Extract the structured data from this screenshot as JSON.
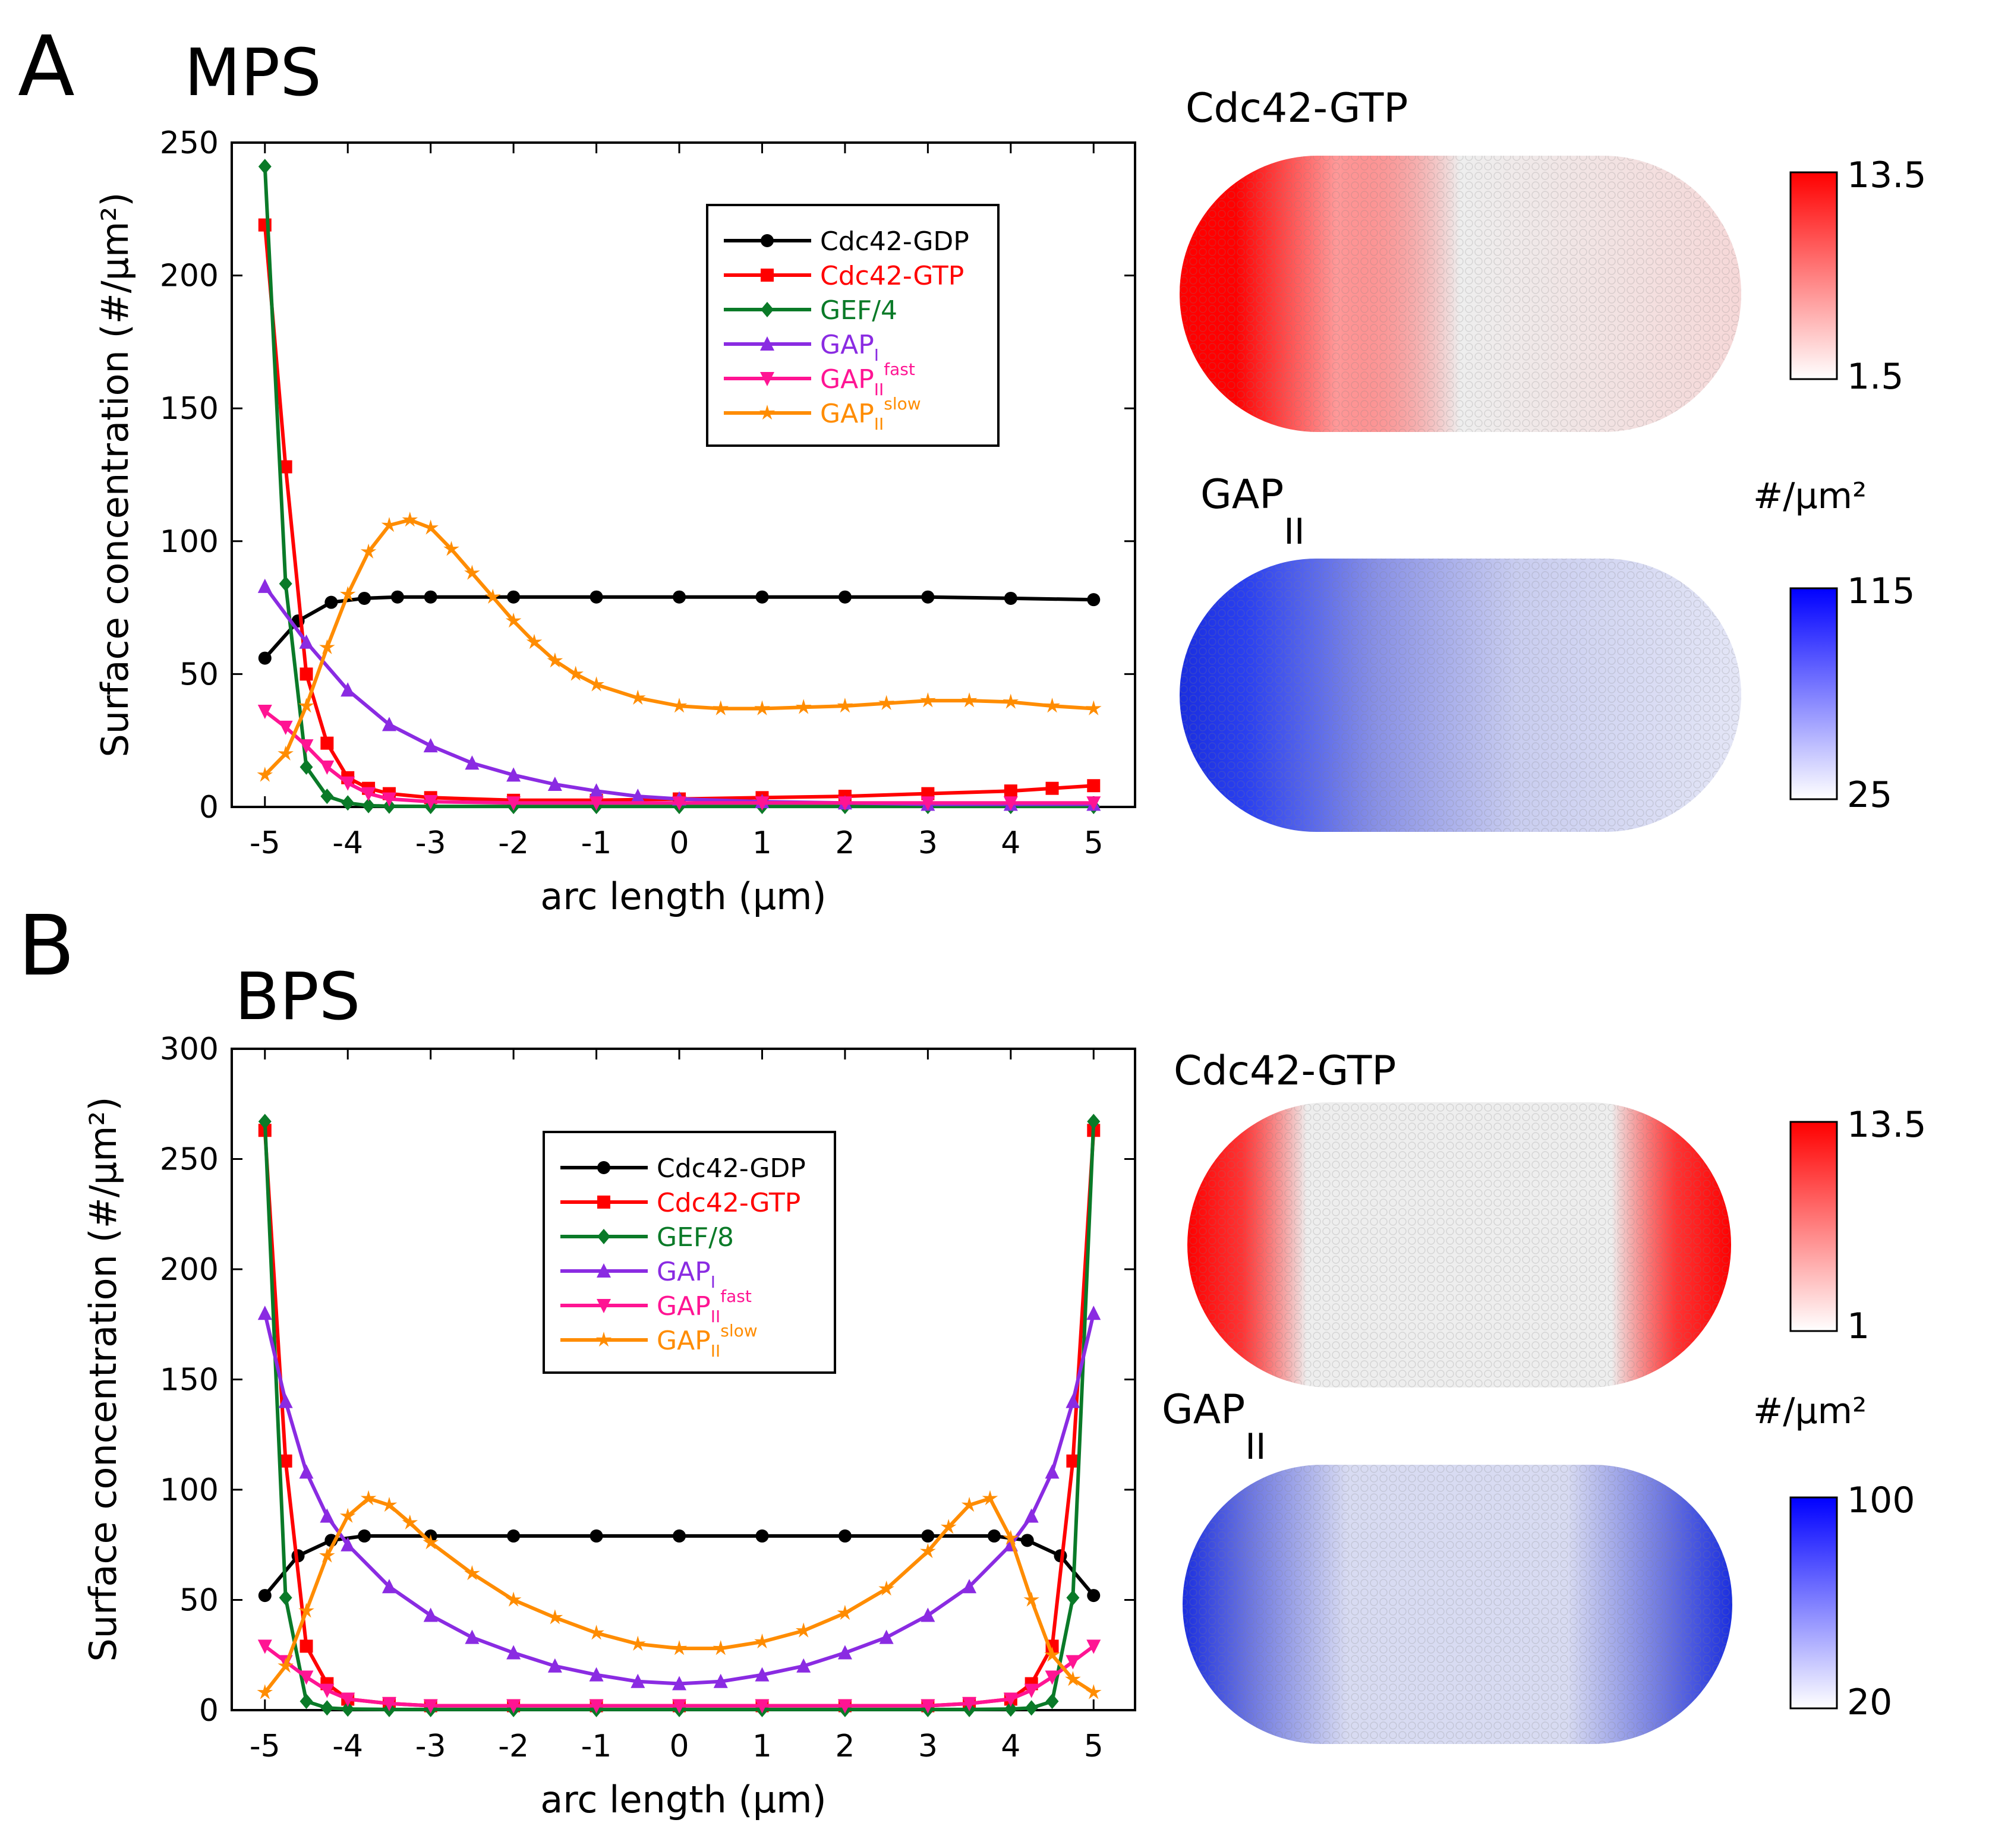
{
  "panels": [
    {
      "letter": "A",
      "title": "MPS",
      "chart_data": {
        "type": "line",
        "xlabel": "arc length (μm)",
        "ylabel": "Surface concentration (#/μm²)",
        "xlim": [
          -5.4,
          5.5
        ],
        "ylim": [
          0,
          250
        ],
        "xticks": [
          -5,
          -4,
          -3,
          -2,
          -1,
          0,
          1,
          2,
          3,
          4,
          5
        ],
        "yticks": [
          0,
          50,
          100,
          150,
          200,
          250
        ],
        "legend_position": "upper-middle",
        "series": [
          {
            "name": "Cdc42-GDP",
            "label_base": "Cdc42-GDP",
            "label_sub": "",
            "label_sup": "",
            "color": "#000000",
            "marker": "circle",
            "x": [
              -5,
              -4.6,
              -4.2,
              -3.8,
              -3.4,
              -3,
              -2,
              -1,
              0,
              1,
              2,
              3,
              4,
              5
            ],
            "y": [
              56,
              70,
              77,
              78.5,
              79,
              79,
              79,
              79,
              79,
              79,
              79,
              79,
              78.5,
              78
            ]
          },
          {
            "name": "Cdc42-GTP",
            "label_base": "Cdc42-GTP",
            "label_sub": "",
            "label_sup": "",
            "color": "#ff0000",
            "marker": "square",
            "x": [
              -5,
              -4.75,
              -4.5,
              -4.25,
              -4,
              -3.75,
              -3.5,
              -3,
              -2,
              -1,
              0,
              1,
              2,
              3,
              4,
              4.5,
              5
            ],
            "y": [
              219,
              128,
              50,
              24,
              11,
              7,
              5,
              3.5,
              2.5,
              2.5,
              3,
              3.5,
              4,
              5,
              6,
              7,
              8
            ]
          },
          {
            "name": "GEF/4",
            "label_base": "GEF/4",
            "label_sub": "",
            "label_sup": "",
            "color": "#0a7a28",
            "marker": "diamond",
            "x": [
              -5,
              -4.75,
              -4.5,
              -4.25,
              -4,
              -3.75,
              -3.5,
              -3,
              -2,
              -1,
              0,
              1,
              2,
              3,
              4,
              5
            ],
            "y": [
              241,
              84,
              15,
              4,
              1.5,
              0.5,
              0.3,
              0.2,
              0.2,
              0.2,
              0.2,
              0.2,
              0.2,
              0.2,
              0.2,
              0.2
            ]
          },
          {
            "name": "GAP_I",
            "label_base": "GAP",
            "label_sub": "I",
            "label_sup": "",
            "color": "#8a2be2",
            "marker": "triangle-up",
            "x": [
              -5,
              -4.5,
              -4,
              -3.5,
              -3,
              -2.5,
              -2,
              -1.5,
              -1,
              -0.5,
              0,
              1,
              2,
              3,
              4,
              5
            ],
            "y": [
              83,
              62,
              44,
              31,
              23,
              16.5,
              12,
              8.5,
              6,
              4,
              3,
              2,
              1.5,
              1,
              1,
              1
            ]
          },
          {
            "name": "GAP_II^fast",
            "label_base": "GAP",
            "label_sub": "II",
            "label_sup": "fast",
            "color": "#ff1493",
            "marker": "triangle-down",
            "x": [
              -5,
              -4.75,
              -4.5,
              -4.25,
              -4,
              -3.75,
              -3.5,
              -3,
              -2,
              -1,
              0,
              1,
              2,
              3,
              4,
              5
            ],
            "y": [
              36,
              30,
              23,
              15,
              9,
              5,
              3,
              2,
              1.5,
              1.5,
              1.5,
              1.5,
              1.5,
              1.5,
              1.5,
              1.5
            ]
          },
          {
            "name": "GAP_II^slow",
            "label_base": "GAP",
            "label_sub": "II",
            "label_sup": "slow",
            "color": "#ff8c00",
            "marker": "star",
            "x": [
              -5,
              -4.75,
              -4.5,
              -4.25,
              -4,
              -3.75,
              -3.5,
              -3.25,
              -3,
              -2.75,
              -2.5,
              -2.25,
              -2,
              -1.75,
              -1.5,
              -1.25,
              -1,
              -0.5,
              0,
              0.5,
              1,
              1.5,
              2,
              2.5,
              3,
              3.5,
              4,
              4.5,
              5
            ],
            "y": [
              12,
              20,
              38,
              60,
              80,
              96,
              106,
              108,
              105,
              97,
              88,
              79,
              70,
              62,
              55,
              50,
              46,
              41,
              38,
              37,
              37,
              37.5,
              38,
              39,
              40,
              40,
              39.5,
              38,
              37
            ]
          }
        ]
      },
      "maps": [
        {
          "title": "Cdc42-GTP",
          "title_sub": "",
          "unit": "",
          "max": "13.5",
          "min": "1.5",
          "high_color": "#ff0000",
          "low_color": "#ffffff",
          "hot_side": "left"
        },
        {
          "title": "GAP",
          "title_sub": "II",
          "unit": "#/μm²",
          "max": "115",
          "min": "25",
          "high_color": "#0000ff",
          "low_color": "#ffffff",
          "hot_side": "left"
        }
      ]
    },
    {
      "letter": "B",
      "title": "BPS",
      "chart_data": {
        "type": "line",
        "xlabel": "arc length (μm)",
        "ylabel": "Surface concentration (#/μm²)",
        "xlim": [
          -5.4,
          5.5
        ],
        "ylim": [
          0,
          300
        ],
        "xticks": [
          -5,
          -4,
          -3,
          -2,
          -1,
          0,
          1,
          2,
          3,
          4,
          5
        ],
        "yticks": [
          0,
          50,
          100,
          150,
          200,
          250,
          300
        ],
        "legend_position": "upper-middle",
        "series": [
          {
            "name": "Cdc42-GDP",
            "label_base": "Cdc42-GDP",
            "label_sub": "",
            "label_sup": "",
            "color": "#000000",
            "marker": "circle",
            "x": [
              -5,
              -4.6,
              -4.2,
              -3.8,
              -3,
              -2,
              -1,
              0,
              1,
              2,
              3,
              3.8,
              4.2,
              4.6,
              5
            ],
            "y": [
              52,
              70,
              77,
              79,
              79,
              79,
              79,
              79,
              79,
              79,
              79,
              79,
              77,
              70,
              52
            ]
          },
          {
            "name": "Cdc42-GTP",
            "label_base": "Cdc42-GTP",
            "label_sub": "",
            "label_sup": "",
            "color": "#ff0000",
            "marker": "square",
            "x": [
              -5,
              -4.75,
              -4.5,
              -4.25,
              -4,
              -3.5,
              -3,
              -2,
              -1,
              0,
              1,
              2,
              3,
              3.5,
              4,
              4.25,
              4.5,
              4.75,
              5
            ],
            "y": [
              263,
              113,
              29,
              12,
              5,
              3,
              2,
              2,
              2,
              2,
              2,
              2,
              2,
              3,
              5,
              12,
              29,
              113,
              263
            ]
          },
          {
            "name": "GEF/8",
            "label_base": "GEF/8",
            "label_sub": "",
            "label_sup": "",
            "color": "#0a7a28",
            "marker": "diamond",
            "x": [
              -5,
              -4.75,
              -4.5,
              -4.25,
              -4,
              -3.5,
              -3,
              -2,
              -1,
              0,
              1,
              2,
              3,
              3.5,
              4,
              4.25,
              4.5,
              4.75,
              5
            ],
            "y": [
              267,
              51,
              4,
              1,
              0.5,
              0.3,
              0.3,
              0.3,
              0.3,
              0.3,
              0.3,
              0.3,
              0.3,
              0.3,
              0.5,
              1,
              4,
              51,
              267
            ]
          },
          {
            "name": "GAP_I",
            "label_base": "GAP",
            "label_sub": "I",
            "label_sup": "",
            "color": "#8a2be2",
            "marker": "triangle-up",
            "x": [
              -5,
              -4.75,
              -4.5,
              -4.25,
              -4,
              -3.5,
              -3,
              -2.5,
              -2,
              -1.5,
              -1,
              -0.5,
              0,
              0.5,
              1,
              1.5,
              2,
              2.5,
              3,
              3.5,
              4,
              4.25,
              4.5,
              4.75,
              5
            ],
            "y": [
              180,
              140,
              108,
              88,
              75,
              56,
              43,
              33,
              26,
              20,
              16,
              13,
              12,
              13,
              16,
              20,
              26,
              33,
              43,
              56,
              75,
              88,
              108,
              140,
              180
            ]
          },
          {
            "name": "GAP_II^fast",
            "label_base": "GAP",
            "label_sub": "II",
            "label_sup": "fast",
            "color": "#ff1493",
            "marker": "triangle-down",
            "x": [
              -5,
              -4.75,
              -4.5,
              -4.25,
              -4,
              -3.5,
              -3,
              -2,
              -1,
              0,
              1,
              2,
              3,
              3.5,
              4,
              4.25,
              4.5,
              4.75,
              5
            ],
            "y": [
              29,
              22,
              15,
              9,
              5,
              3,
              2,
              2,
              2,
              2,
              2,
              2,
              2,
              3,
              5,
              9,
              15,
              22,
              29
            ]
          },
          {
            "name": "GAP_II^slow",
            "label_base": "GAP",
            "label_sub": "II",
            "label_sup": "slow",
            "color": "#ff8c00",
            "marker": "star",
            "x": [
              -5,
              -4.75,
              -4.5,
              -4.25,
              -4,
              -3.75,
              -3.5,
              -3.25,
              -3,
              -2.5,
              -2,
              -1.5,
              -1,
              -0.5,
              0,
              0.5,
              1,
              1.5,
              2,
              2.5,
              3,
              3.25,
              3.5,
              3.75,
              4,
              4.25,
              4.5,
              4.75,
              5
            ],
            "y": [
              8,
              20,
              45,
              70,
              88,
              96,
              93,
              85,
              76,
              62,
              50,
              42,
              35,
              30,
              28,
              28,
              31,
              36,
              44,
              55,
              72,
              83,
              93,
              96,
              78,
              50,
              25,
              14,
              8
            ]
          }
        ]
      },
      "maps": [
        {
          "title": "Cdc42-GTP",
          "title_sub": "",
          "unit": "",
          "max": "13.5",
          "min": "1",
          "high_color": "#ff0000",
          "low_color": "#ffffff",
          "hot_side": "both"
        },
        {
          "title": "GAP",
          "title_sub": "II",
          "unit": "#/μm²",
          "max": "100",
          "min": "20",
          "high_color": "#0000ff",
          "low_color": "#ffffff",
          "hot_side": "both"
        }
      ]
    }
  ]
}
